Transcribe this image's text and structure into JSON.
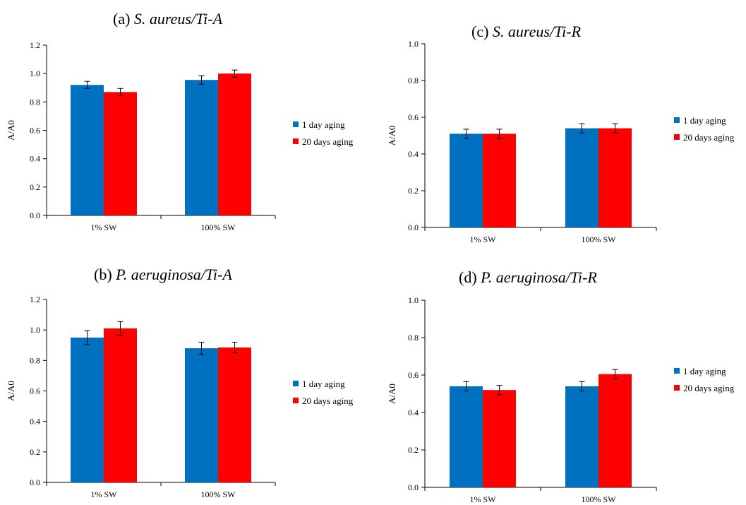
{
  "series_colors": [
    "#0070C0",
    "#FF0000"
  ],
  "chart_data": [
    {
      "type": "bar",
      "title_prefix": "(a)",
      "title_italic": "S. aureus/Ti-A",
      "ylabel": "A/A0",
      "xlabel": "",
      "categories": [
        "1% SW",
        "100% SW"
      ],
      "ylim": [
        0,
        1.2
      ],
      "yticks": [
        "0.0",
        "0.2",
        "0.4",
        "0.6",
        "0.8",
        "1.0",
        "1.2"
      ],
      "grid": false,
      "legend_position": "right",
      "series": [
        {
          "name": "1 day aging",
          "values": [
            0.92,
            0.955
          ],
          "errors": [
            0.025,
            0.03
          ]
        },
        {
          "name": "20 days aging",
          "values": [
            0.87,
            1.0
          ],
          "errors": [
            0.025,
            0.025
          ]
        }
      ]
    },
    {
      "type": "bar",
      "title_prefix": "(b)",
      "title_italic": "P. aeruginosa/Ti-A",
      "ylabel": "A/A0",
      "xlabel": "",
      "categories": [
        "1% SW",
        "100% SW"
      ],
      "ylim": [
        0,
        1.2
      ],
      "yticks": [
        "0.0",
        "0.2",
        "0.4",
        "0.6",
        "0.8",
        "1.0",
        "1.2"
      ],
      "grid": false,
      "legend_position": "right",
      "series": [
        {
          "name": "1 day aging",
          "values": [
            0.95,
            0.88
          ],
          "errors": [
            0.045,
            0.04
          ]
        },
        {
          "name": "20 days aging",
          "values": [
            1.01,
            0.885
          ],
          "errors": [
            0.045,
            0.035
          ]
        }
      ]
    },
    {
      "type": "bar",
      "title_prefix": "(c)",
      "title_italic": "S. aureus/Ti-R",
      "ylabel": "A/A0",
      "xlabel": "",
      "categories": [
        "1% SW",
        "100% SW"
      ],
      "ylim": [
        0,
        1.0
      ],
      "yticks": [
        "0.0",
        "0.2",
        "0.4",
        "0.6",
        "0.8",
        "1.0"
      ],
      "grid": false,
      "legend_position": "right",
      "series": [
        {
          "name": "1 day aging",
          "values": [
            0.51,
            0.54
          ],
          "errors": [
            0.025,
            0.025
          ]
        },
        {
          "name": "20 days aging",
          "values": [
            0.51,
            0.54
          ],
          "errors": [
            0.025,
            0.025
          ]
        }
      ]
    },
    {
      "type": "bar",
      "title_prefix": "(d)",
      "title_italic": "P. aeruginosa/Ti-R",
      "ylabel": "A/A0",
      "xlabel": "",
      "categories": [
        "1% SW",
        "100% SW"
      ],
      "ylim": [
        0,
        1.0
      ],
      "yticks": [
        "0.0",
        "0.2",
        "0.4",
        "0.6",
        "0.8",
        "1.0"
      ],
      "grid": false,
      "legend_position": "right",
      "series": [
        {
          "name": "1 day aging",
          "values": [
            0.54,
            0.54
          ],
          "errors": [
            0.025,
            0.025
          ]
        },
        {
          "name": "20 days aging",
          "values": [
            0.52,
            0.605
          ],
          "errors": [
            0.025,
            0.025
          ]
        }
      ]
    }
  ]
}
